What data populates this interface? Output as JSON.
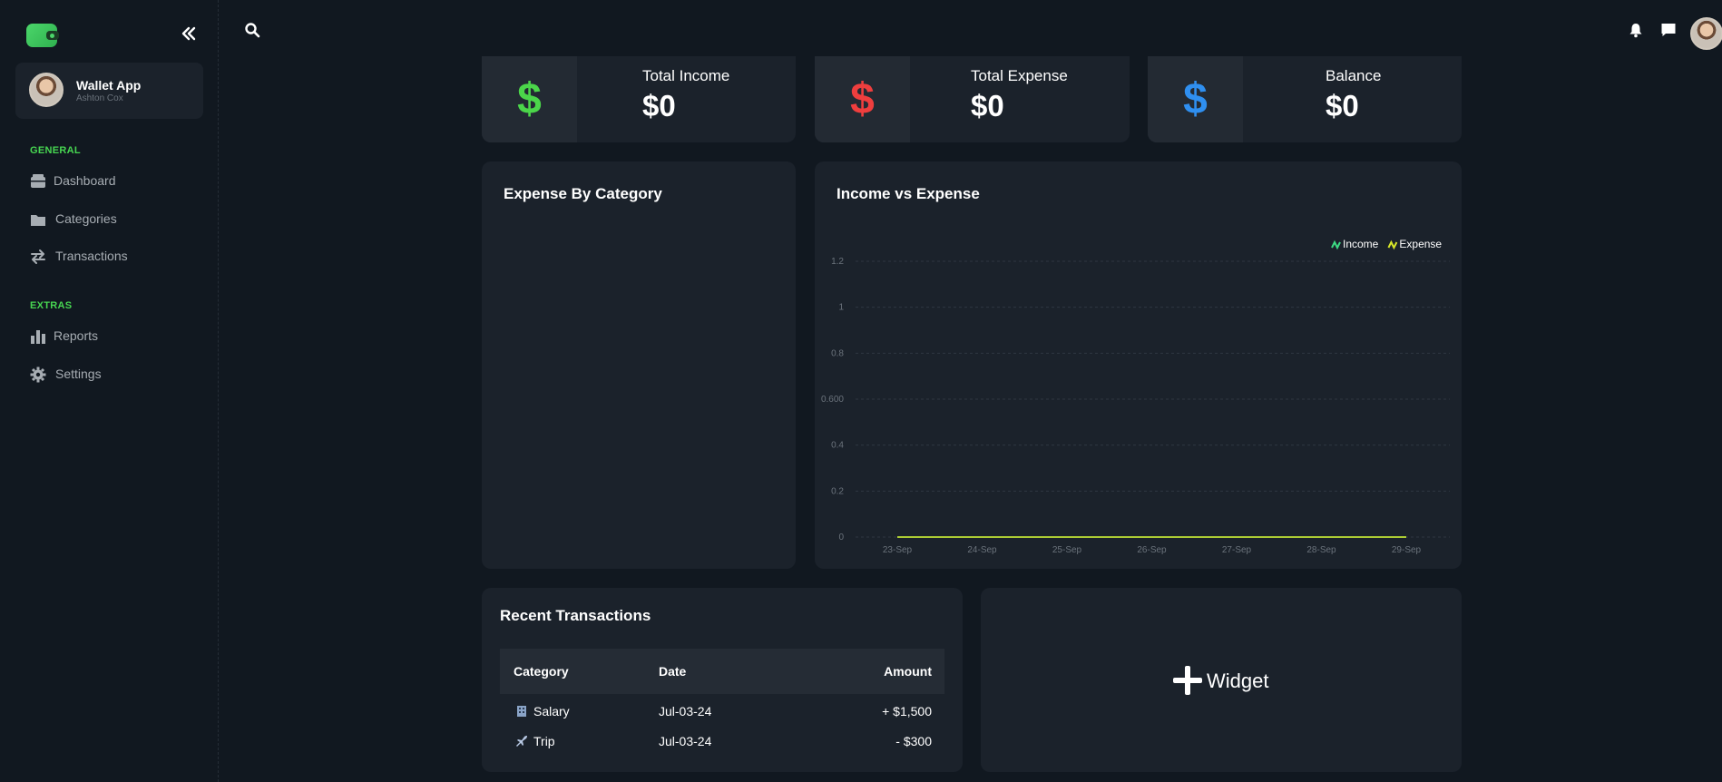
{
  "app": {
    "name": "Wallet App",
    "user": "Ashton Cox"
  },
  "sidebar": {
    "sections": [
      {
        "label": "GENERAL",
        "items": [
          {
            "label": "Dashboard",
            "icon": "dashboard-icon"
          },
          {
            "label": "Categories",
            "icon": "folder-icon"
          },
          {
            "label": "Transactions",
            "icon": "exchange-icon"
          }
        ]
      },
      {
        "label": "EXTRAS",
        "items": [
          {
            "label": "Reports",
            "icon": "bar-chart-icon"
          },
          {
            "label": "Settings",
            "icon": "gear-icon"
          }
        ]
      }
    ]
  },
  "stats": [
    {
      "title": "Total Income",
      "value": "$0",
      "icon": "dollar-icon",
      "color": "#4bd64a"
    },
    {
      "title": "Total Expense",
      "value": "$0",
      "icon": "dollar-icon",
      "color": "#ef3e3e"
    },
    {
      "title": "Balance",
      "value": "$0",
      "icon": "dollar-icon",
      "color": "#2f8ff0"
    }
  ],
  "expense_by_category": {
    "title": "Expense By Category"
  },
  "income_vs_expense": {
    "title": "Income vs Expense"
  },
  "chart_data": {
    "type": "line",
    "categories": [
      "23-Sep",
      "24-Sep",
      "25-Sep",
      "26-Sep",
      "27-Sep",
      "28-Sep",
      "29-Sep"
    ],
    "series": [
      {
        "name": "Income",
        "values": [
          0,
          0,
          0,
          0,
          0,
          0,
          0
        ],
        "color": "#3ddc84"
      },
      {
        "name": "Expense",
        "values": [
          0,
          0,
          0,
          0,
          0,
          0,
          0
        ],
        "color": "#d7e629"
      }
    ],
    "yticks": [
      "0",
      "0.2",
      "0.4",
      "0.600",
      "0.8",
      "1",
      "1.2"
    ],
    "ylim": [
      0,
      1.2
    ],
    "grid": true,
    "legend": "top-right"
  },
  "recent_transactions": {
    "title": "Recent Transactions",
    "columns": [
      "Category",
      "Date",
      "Amount"
    ],
    "rows": [
      {
        "category": "Salary",
        "icon": "building-icon",
        "date": "Jul-03-24",
        "amount": "+ $1,500"
      },
      {
        "category": "Trip",
        "icon": "airplane-icon",
        "date": "Jul-03-24",
        "amount": "- $300"
      }
    ]
  },
  "widget": {
    "label": "Widget"
  }
}
